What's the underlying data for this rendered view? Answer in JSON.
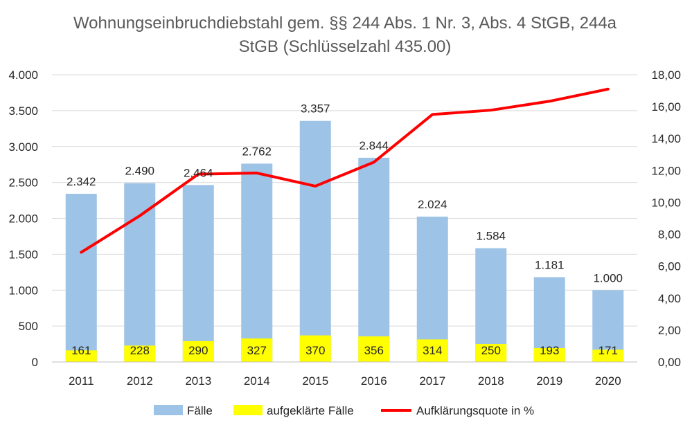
{
  "chart_data": {
    "type": "bar",
    "title_lines": [
      "Wohnungseinbruchdiebstahl gem. §§ 244 Abs. 1 Nr. 3, Abs. 4 StGB, 244a",
      "StGB (Schlüsselzahl 435.00)"
    ],
    "categories": [
      "2011",
      "2012",
      "2013",
      "2014",
      "2015",
      "2016",
      "2017",
      "2018",
      "2019",
      "2020"
    ],
    "series": [
      {
        "name": "Fälle",
        "type": "bar",
        "axis": "left",
        "color": "#9dc3e6",
        "values": [
          2342,
          2490,
          2464,
          2762,
          3357,
          2844,
          2024,
          1584,
          1181,
          1000
        ],
        "labels": [
          "2.342",
          "2.490",
          "2.464",
          "2.762",
          "3.357",
          "2.844",
          "2.024",
          "1.584",
          "1.181",
          "1.000"
        ]
      },
      {
        "name": "aufgeklärte Fälle",
        "type": "bar",
        "axis": "left",
        "color": "#ffff00",
        "values": [
          161,
          228,
          290,
          327,
          370,
          356,
          314,
          250,
          193,
          171
        ],
        "labels": [
          "161",
          "228",
          "290",
          "327",
          "370",
          "356",
          "314",
          "250",
          "193",
          "171"
        ]
      },
      {
        "name": "Aufklärungsquote in %",
        "type": "line",
        "axis": "right",
        "color": "#ff0000",
        "values": [
          6.87,
          9.16,
          11.77,
          11.84,
          11.02,
          12.52,
          15.51,
          15.78,
          16.34,
          17.1
        ]
      }
    ],
    "y_left": {
      "min": 0,
      "max": 4000,
      "ticks": [
        0,
        500,
        1000,
        1500,
        2000,
        2500,
        3000,
        3500,
        4000
      ],
      "tick_labels": [
        "0",
        "500",
        "1.000",
        "1.500",
        "2.000",
        "2.500",
        "3.000",
        "3.500",
        "4.000"
      ]
    },
    "y_right": {
      "min": 0,
      "max": 18,
      "ticks": [
        0,
        2,
        4,
        6,
        8,
        10,
        12,
        14,
        16,
        18
      ],
      "tick_labels": [
        "0,00",
        "2,00",
        "4,00",
        "6,00",
        "8,00",
        "10,00",
        "12,00",
        "14,00",
        "16,00",
        "18,00"
      ]
    },
    "grid": true,
    "legend_position": "bottom",
    "colors": {
      "grid": "#d9d9d9",
      "axis": "#bfbfbf",
      "title": "#595959",
      "text": "#262626"
    }
  }
}
